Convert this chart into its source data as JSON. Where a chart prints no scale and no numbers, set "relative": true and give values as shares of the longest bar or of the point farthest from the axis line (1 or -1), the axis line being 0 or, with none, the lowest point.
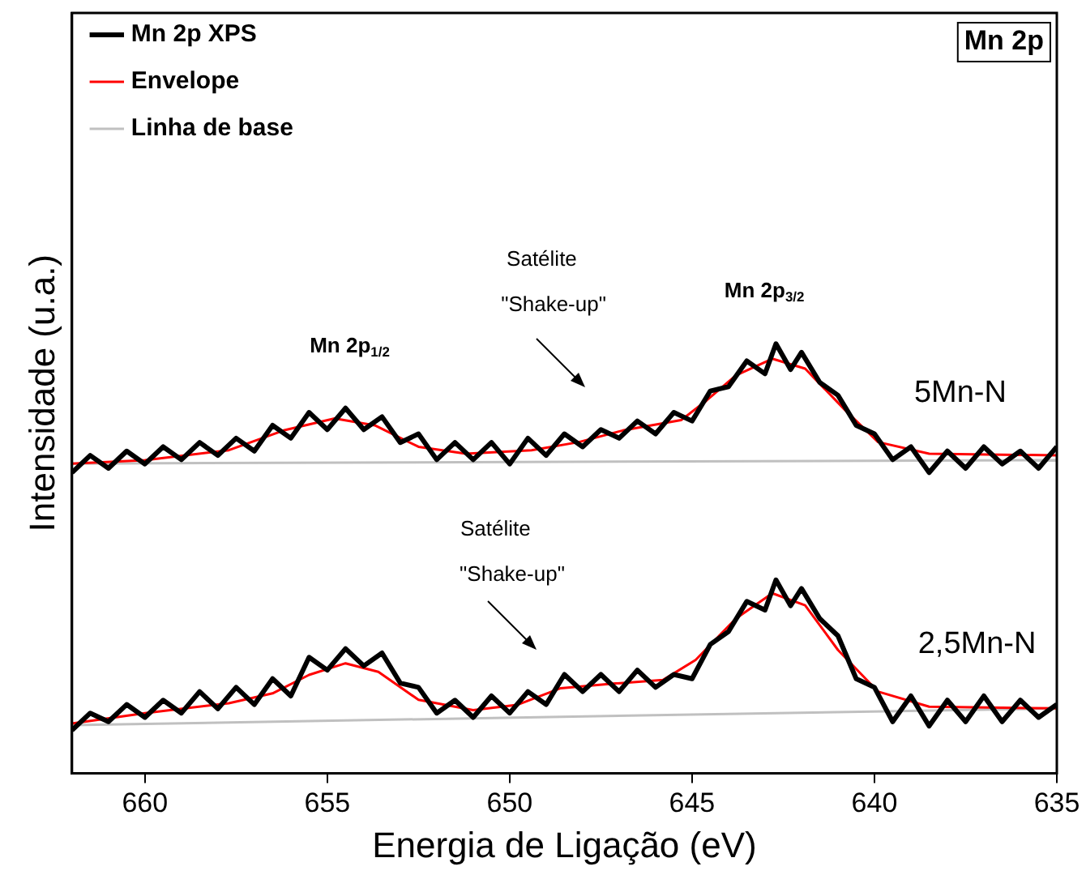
{
  "chart_data": {
    "type": "line",
    "relative": true,
    "xlabel": "Energia de Ligação (eV)",
    "ylabel": "Intensidade (u.a.)",
    "xlim": [
      662,
      635
    ],
    "xticks": [
      660,
      655,
      650,
      645,
      640,
      635
    ],
    "grid": false,
    "legend": "top left",
    "marker": "none",
    "line_style": "solid",
    "series": [
      {
        "name": "Mn 2p XPS",
        "color": "#000000",
        "x": [
          662,
          661.5,
          661,
          660.5,
          660,
          659.5,
          659,
          658.5,
          658,
          657.5,
          657,
          656.5,
          656,
          655.5,
          655,
          654.5,
          654,
          653.5,
          653,
          652.5,
          652,
          651.5,
          651,
          650.5,
          650,
          649.5,
          649,
          648.5,
          648,
          647.5,
          647,
          646.5,
          646,
          645.5,
          645,
          644.5,
          644,
          643.5,
          643,
          642.7,
          642.3,
          642,
          641.5,
          641,
          640.5,
          640,
          639.5,
          639,
          638.5,
          638,
          637.5,
          637,
          636.5,
          636,
          635.5,
          635
        ],
        "values": [
          0.7,
          0.74,
          0.71,
          0.75,
          0.72,
          0.76,
          0.73,
          0.77,
          0.74,
          0.78,
          0.75,
          0.81,
          0.78,
          0.84,
          0.8,
          0.85,
          0.8,
          0.83,
          0.77,
          0.79,
          0.73,
          0.77,
          0.73,
          0.77,
          0.72,
          0.78,
          0.74,
          0.79,
          0.76,
          0.8,
          0.78,
          0.82,
          0.79,
          0.84,
          0.82,
          0.89,
          0.9,
          0.96,
          0.93,
          1.0,
          0.94,
          0.98,
          0.91,
          0.88,
          0.81,
          0.79,
          0.73,
          0.76,
          0.7,
          0.75,
          0.71,
          0.76,
          0.72,
          0.75,
          0.71,
          0.76
        ]
      },
      {
        "name": "Envelope",
        "color": "#ff0000",
        "x": [
          662,
          660,
          657.7,
          656.2,
          654.8,
          653.7,
          652.5,
          651.2,
          649.4,
          648.1,
          646.9,
          645.3,
          644.6,
          643.8,
          642.8,
          641.9,
          640.8,
          639.9,
          638.5,
          635
        ],
        "values": [
          0.721,
          0.729,
          0.752,
          0.798,
          0.826,
          0.81,
          0.76,
          0.744,
          0.752,
          0.771,
          0.798,
          0.822,
          0.868,
          0.926,
          0.965,
          0.942,
          0.845,
          0.771,
          0.744,
          0.74
        ]
      },
      {
        "name": "Linha de base",
        "color": "#c0c0c0",
        "x": [
          662,
          635
        ],
        "values": [
          0.721,
          0.729
        ]
      },
      {
        "color": "#000000",
        "x": [
          662,
          661.5,
          661,
          660.5,
          660,
          659.5,
          659,
          658.5,
          658,
          657.5,
          657,
          656.5,
          656,
          655.5,
          655,
          654.5,
          654,
          653.5,
          653,
          652.5,
          652,
          651.5,
          651,
          650.5,
          650,
          649.5,
          649,
          648.5,
          648,
          647.5,
          647,
          646.5,
          646,
          645.5,
          645,
          644.5,
          644,
          643.5,
          643,
          642.7,
          642.3,
          642,
          641.5,
          641,
          640.5,
          640,
          639.5,
          639,
          638.5,
          638,
          637.5,
          637,
          636.5,
          636,
          635.5,
          635
        ],
        "values": [
          0.1,
          0.14,
          0.12,
          0.16,
          0.13,
          0.17,
          0.14,
          0.19,
          0.15,
          0.2,
          0.16,
          0.22,
          0.18,
          0.27,
          0.24,
          0.29,
          0.25,
          0.28,
          0.21,
          0.2,
          0.14,
          0.17,
          0.13,
          0.18,
          0.14,
          0.19,
          0.16,
          0.23,
          0.19,
          0.23,
          0.19,
          0.24,
          0.2,
          0.23,
          0.22,
          0.3,
          0.33,
          0.4,
          0.38,
          0.45,
          0.39,
          0.43,
          0.36,
          0.32,
          0.22,
          0.2,
          0.12,
          0.18,
          0.11,
          0.17,
          0.12,
          0.18,
          0.12,
          0.17,
          0.13,
          0.16
        ]
      },
      {
        "color": "#ff0000",
        "x": [
          662,
          660,
          657.7,
          656.5,
          655.5,
          654.5,
          653.6,
          652.5,
          651,
          649.8,
          648.6,
          647.1,
          645.8,
          644.9,
          643.8,
          642.8,
          641.9,
          641,
          639.9,
          638.5,
          635
        ],
        "values": [
          0.116,
          0.14,
          0.163,
          0.186,
          0.229,
          0.256,
          0.236,
          0.171,
          0.147,
          0.159,
          0.198,
          0.209,
          0.217,
          0.264,
          0.36,
          0.419,
          0.391,
          0.287,
          0.19,
          0.155,
          0.151
        ]
      },
      {
        "color": "#c0c0c0",
        "x": [
          662,
          635
        ],
        "values": [
          0.112,
          0.151
        ]
      }
    ],
    "annotations": [
      "Mn 2p",
      "Mn 2p$_{1/2}$",
      "Satélite",
      "\"Shake-up\"",
      "Mn 2p$_{3/2}$",
      "5Mn-N",
      "Satélite",
      "\"Shake-up\"",
      "2,5Mn-N"
    ]
  }
}
